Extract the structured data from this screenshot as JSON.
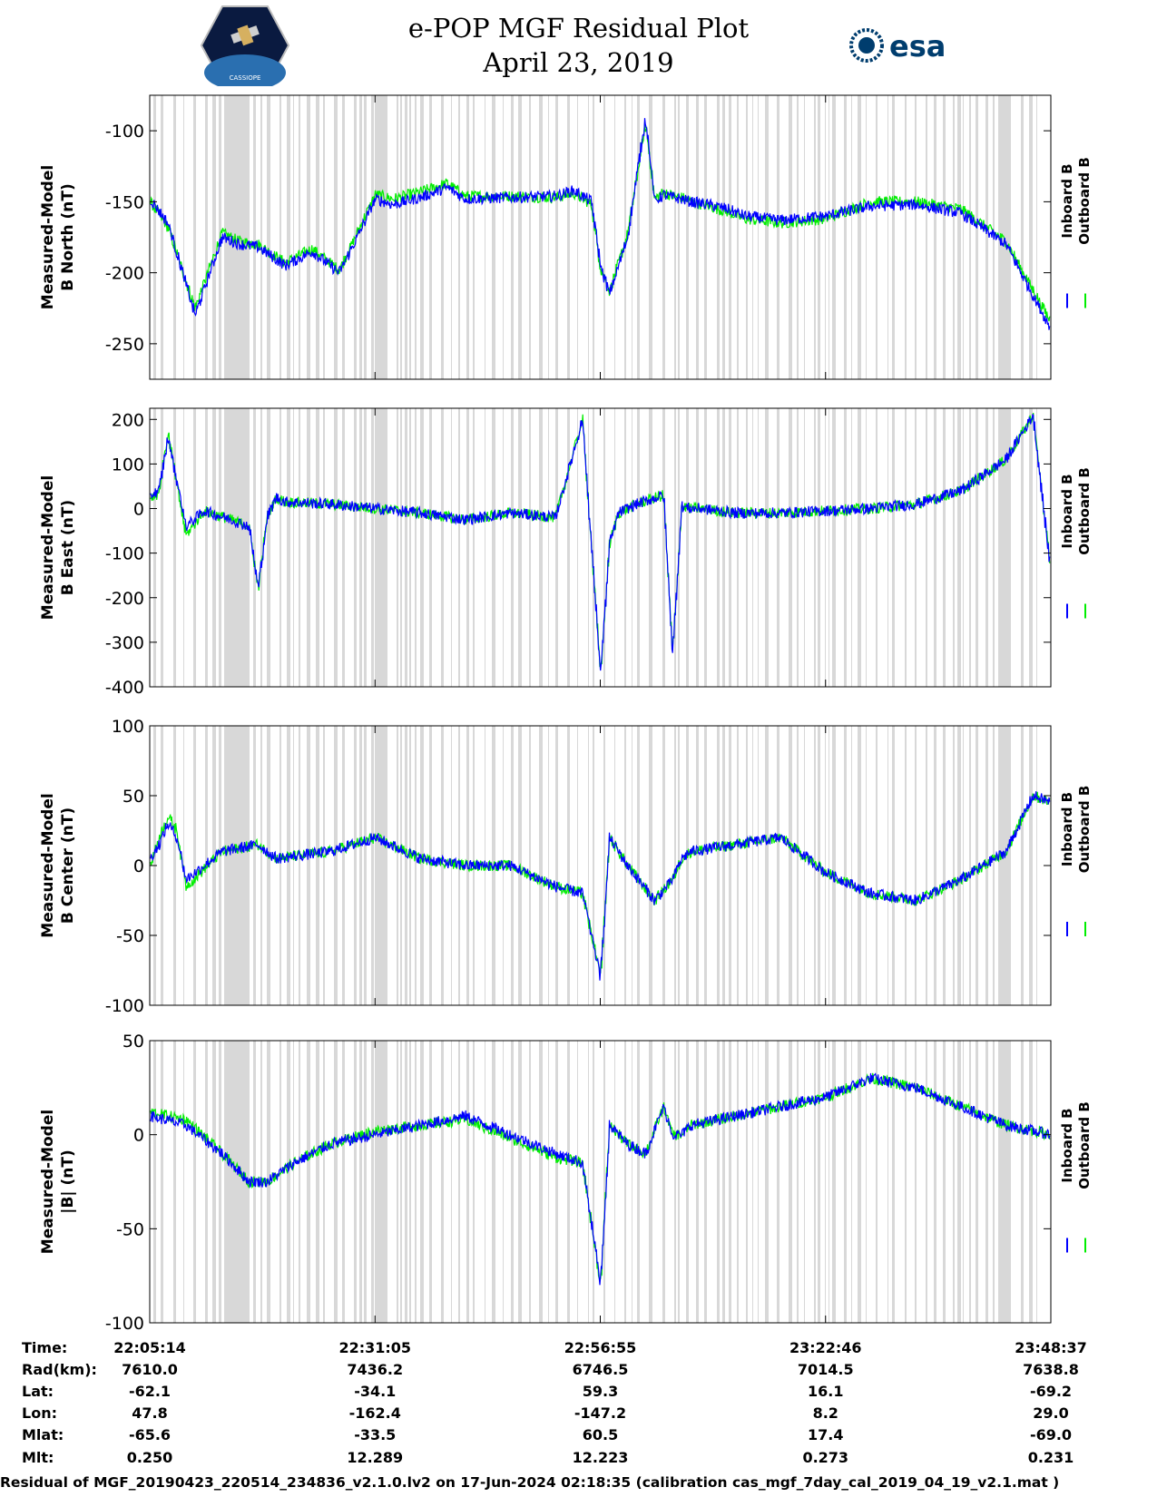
{
  "title": {
    "line1": "e-POP MGF Residual Plot",
    "line2": "April 23, 2019"
  },
  "logos": {
    "left": "CASSIOPE",
    "right": "esa"
  },
  "colors": {
    "inboard": "#0000ff",
    "outboard": "#00ee00",
    "shading": "#d8d8d8"
  },
  "chart_data": [
    {
      "type": "line",
      "ylabel": [
        "Measured-Model",
        "B North (nT)"
      ],
      "ylim": [
        -275,
        -75
      ],
      "yticks": [
        -100,
        -150,
        -200,
        -250
      ],
      "legend": [
        "Inboard B",
        "Outboard B"
      ],
      "x": [
        0,
        2,
        5,
        8,
        10,
        12,
        15,
        18,
        21,
        23,
        25,
        27,
        30,
        33,
        35,
        40,
        45,
        47,
        49,
        50,
        51,
        52,
        53,
        55,
        56,
        57,
        58,
        59,
        60,
        62,
        64,
        66,
        70,
        75,
        80,
        85,
        90,
        95,
        100
      ],
      "series": [
        {
          "name": "Inboard B",
          "values": [
            -148,
            -165,
            -230,
            -175,
            -180,
            -182,
            -195,
            -185,
            -200,
            -175,
            -148,
            -152,
            -147,
            -140,
            -148,
            -147,
            -146,
            -142,
            -150,
            -195,
            -215,
            -195,
            -175,
            -90,
            -150,
            -145,
            -147,
            -148,
            -150,
            -152,
            -155,
            -160,
            -163,
            -160,
            -153,
            -152,
            -158,
            -180,
            -240
          ]
        },
        {
          "name": "Outboard B",
          "values": [
            -150,
            -168,
            -225,
            -172,
            -178,
            -180,
            -193,
            -183,
            -198,
            -172,
            -145,
            -148,
            -143,
            -137,
            -146,
            -146,
            -147,
            -144,
            -152,
            -197,
            -213,
            -193,
            -173,
            -95,
            -148,
            -143,
            -146,
            -147,
            -150,
            -153,
            -157,
            -162,
            -165,
            -162,
            -150,
            -150,
            -155,
            -178,
            -235
          ]
        }
      ]
    },
    {
      "type": "line",
      "ylabel": [
        "Measured-Model",
        "B East (nT)"
      ],
      "ylim": [
        -400,
        225
      ],
      "yticks": [
        200,
        100,
        0,
        -100,
        -200,
        -300,
        -400
      ],
      "legend": [
        "Inboard B",
        "Outboard B"
      ],
      "x": [
        0,
        1,
        2,
        3,
        4,
        6,
        9,
        11,
        12,
        13,
        14,
        15,
        20,
        25,
        30,
        35,
        40,
        45,
        48,
        50,
        51,
        52,
        54,
        57,
        58,
        59,
        60,
        61,
        65,
        70,
        75,
        80,
        85,
        90,
        95,
        98,
        100
      ],
      "series": [
        {
          "name": "Inboard B",
          "values": [
            30,
            40,
            160,
            60,
            -40,
            -5,
            -25,
            -40,
            -180,
            -20,
            25,
            15,
            10,
            0,
            -10,
            -25,
            -10,
            -20,
            200,
            -370,
            -80,
            -10,
            10,
            30,
            -330,
            5,
            0,
            0,
            -10,
            -10,
            -5,
            0,
            10,
            40,
            110,
            210,
            -150
          ]
        },
        {
          "name": "Outboard B",
          "values": [
            25,
            35,
            170,
            50,
            -60,
            -5,
            -25,
            -40,
            -180,
            -20,
            25,
            15,
            10,
            0,
            -10,
            -25,
            -10,
            -20,
            200,
            -370,
            -80,
            -10,
            10,
            30,
            -330,
            5,
            0,
            0,
            -10,
            -10,
            -5,
            0,
            10,
            40,
            110,
            210,
            -150
          ]
        }
      ]
    },
    {
      "type": "line",
      "ylabel": [
        "Measured-Model",
        "B Center (nT)"
      ],
      "ylim": [
        -100,
        100
      ],
      "yticks": [
        100,
        50,
        0,
        -50,
        -100
      ],
      "legend": [
        "Inboard B",
        "Outboard B"
      ],
      "x": [
        0,
        1,
        2,
        3,
        4,
        8,
        12,
        14,
        20,
        25,
        30,
        35,
        40,
        45,
        48,
        50,
        51,
        53,
        56,
        58,
        59,
        60,
        65,
        70,
        75,
        80,
        85,
        90,
        95,
        98,
        100
      ],
      "series": [
        {
          "name": "Inboard B",
          "values": [
            5,
            15,
            30,
            20,
            -10,
            10,
            15,
            5,
            10,
            20,
            5,
            0,
            0,
            -15,
            -20,
            -80,
            20,
            0,
            -25,
            -10,
            5,
            10,
            15,
            20,
            -5,
            -20,
            -25,
            -10,
            10,
            50,
            45
          ]
        },
        {
          "name": "Outboard B",
          "values": [
            0,
            20,
            35,
            25,
            -15,
            10,
            15,
            5,
            10,
            20,
            5,
            0,
            0,
            -15,
            -20,
            -80,
            20,
            0,
            -25,
            -10,
            5,
            10,
            15,
            20,
            -5,
            -20,
            -25,
            -10,
            10,
            50,
            45
          ]
        }
      ]
    },
    {
      "type": "line",
      "ylabel": [
        "Measured-Model",
        "|B| (nT)"
      ],
      "ylim": [
        -100,
        50
      ],
      "yticks": [
        50,
        0,
        -50,
        -100
      ],
      "legend": [
        "Inboard B",
        "Outboard B"
      ],
      "x": [
        0,
        4,
        8,
        11,
        13,
        16,
        20,
        25,
        30,
        35,
        40,
        45,
        48,
        50,
        51,
        53,
        55,
        57,
        58,
        59,
        60,
        65,
        70,
        75,
        80,
        85,
        90,
        95,
        100
      ],
      "series": [
        {
          "name": "Inboard B",
          "values": [
            10,
            5,
            -10,
            -25,
            -25,
            -15,
            -5,
            0,
            5,
            10,
            0,
            -10,
            -15,
            -80,
            5,
            -5,
            -10,
            15,
            0,
            0,
            5,
            10,
            15,
            20,
            30,
            25,
            15,
            5,
            0
          ]
        },
        {
          "name": "Outboard B",
          "values": [
            12,
            8,
            -10,
            -25,
            -25,
            -15,
            -5,
            2,
            5,
            8,
            -2,
            -12,
            -15,
            -80,
            5,
            -5,
            -10,
            15,
            0,
            0,
            5,
            10,
            15,
            20,
            30,
            25,
            15,
            5,
            0
          ]
        }
      ]
    }
  ],
  "table": {
    "labels": [
      "Time:",
      "Rad(km):",
      "Lat:",
      "Lon:",
      "Mlat:",
      "Mlt:"
    ],
    "columns": [
      [
        "22:05:14",
        "7610.0",
        "-62.1",
        "47.8",
        "-65.6",
        "0.250"
      ],
      [
        "22:31:05",
        "7436.2",
        "-34.1",
        "-162.4",
        "-33.5",
        "12.289"
      ],
      [
        "22:56:55",
        "6746.5",
        "59.3",
        "-147.2",
        "60.5",
        "12.223"
      ],
      [
        "23:22:46",
        "7014.5",
        "16.1",
        "8.2",
        "17.4",
        "0.273"
      ],
      [
        "23:48:37",
        "7638.8",
        "-69.2",
        "29.0",
        "-69.0",
        "0.231"
      ]
    ]
  },
  "footer": "Residual of MGF_20190423_220514_234836_v2.1.0.lv2 on 17-Jun-2024 02:18:35 (calibration cas_mgf_7day_cal_2019_04_19_v2.1.mat )"
}
